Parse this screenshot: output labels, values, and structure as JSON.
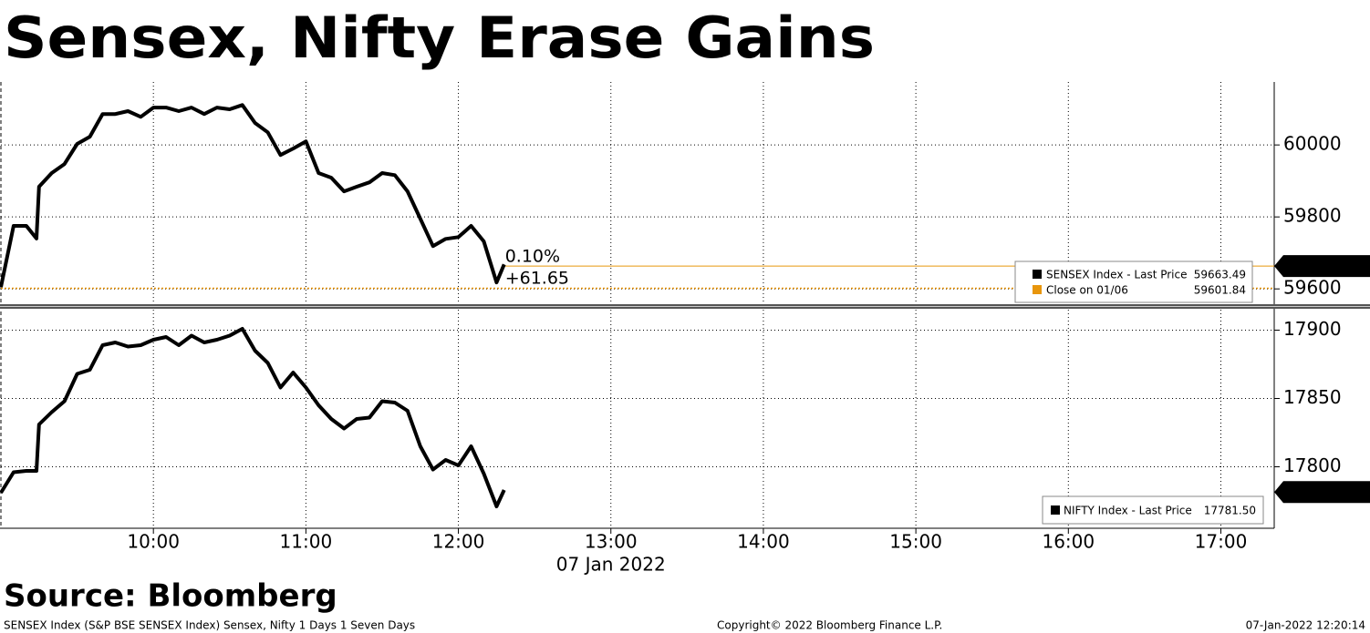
{
  "title": "Sensex, Nifty Erase Gains",
  "source": "Source: Bloomberg",
  "footer": {
    "left": "SENSEX Index (S&P BSE SENSEX Index) Sensex, Nifty 1 Days 1 Seven Days",
    "center": "Copyright© 2022 Bloomberg Finance L.P.",
    "right": "07-Jan-2022 12:20:14"
  },
  "chart_data": [
    {
      "type": "line",
      "x": [
        "09:00",
        "09:05",
        "09:10",
        "09:14",
        "09:15",
        "09:20",
        "09:25",
        "09:30",
        "09:35",
        "09:40",
        "09:45",
        "09:50",
        "09:55",
        "10:00",
        "10:05",
        "10:10",
        "10:15",
        "10:20",
        "10:25",
        "10:30",
        "10:35",
        "10:40",
        "10:45",
        "10:50",
        "10:55",
        "11:00",
        "11:05",
        "11:10",
        "11:15",
        "11:20",
        "11:25",
        "11:30",
        "11:35",
        "11:40",
        "11:45",
        "11:50",
        "11:55",
        "12:00",
        "12:05",
        "12:10",
        "12:15",
        "12:18"
      ],
      "series": [
        {
          "name": "SENSEX Index - Last Price",
          "color": "#000000",
          "last_price": 59663.49,
          "values": [
            59605,
            59775,
            59775,
            59740,
            59884,
            59922,
            59947,
            60003,
            60023,
            60086,
            60086,
            60094,
            60078,
            60104,
            60104,
            60094,
            60104,
            60086,
            60104,
            60099,
            60111,
            60061,
            60035,
            59972,
            59990,
            60010,
            59922,
            59909,
            59871,
            59884,
            59896,
            59922,
            59916,
            59871,
            59795,
            59719,
            59739,
            59744,
            59775,
            59732,
            59618,
            59668
          ]
        }
      ],
      "reference_line": {
        "name": "Close on 01/06",
        "value": 59601.84,
        "color": "#e8960c"
      },
      "annotations": [
        "0.10%",
        "+61.65"
      ],
      "ylim": [
        59560,
        60175
      ],
      "yticks": [
        59600,
        59800,
        60000
      ],
      "grid": true
    },
    {
      "type": "line",
      "x": [
        "09:00",
        "09:05",
        "09:10",
        "09:14",
        "09:15",
        "09:20",
        "09:25",
        "09:30",
        "09:35",
        "09:40",
        "09:45",
        "09:50",
        "09:55",
        "10:00",
        "10:05",
        "10:10",
        "10:15",
        "10:20",
        "10:25",
        "10:30",
        "10:35",
        "10:40",
        "10:45",
        "10:50",
        "10:55",
        "11:00",
        "11:05",
        "11:10",
        "11:15",
        "11:20",
        "11:25",
        "11:30",
        "11:35",
        "11:40",
        "11:45",
        "11:50",
        "11:55",
        "12:00",
        "12:05",
        "12:10",
        "12:15",
        "12:18"
      ],
      "series": [
        {
          "name": "NIFTY Index - Last Price",
          "color": "#000000",
          "last_price": 17781.5,
          "last_price_label": "17781.50",
          "values": [
            17781,
            17796,
            17797,
            17797,
            17831,
            17840,
            17848,
            17868,
            17871,
            17889,
            17891,
            17888,
            17889,
            17893,
            17895,
            17889,
            17896,
            17891,
            17893,
            17896,
            17901,
            17885,
            17876,
            17858,
            17869,
            17858,
            17845,
            17835,
            17828,
            17835,
            17836,
            17848,
            17847,
            17841,
            17815,
            17798,
            17805,
            17801,
            17815,
            17795,
            17771,
            17783
          ]
        }
      ],
      "xlim": [
        "09:00",
        "17:21"
      ],
      "xticks": [
        "10:00",
        "11:00",
        "12:00",
        "13:00",
        "14:00",
        "15:00",
        "16:00",
        "17:00"
      ],
      "xlabel": "07 Jan 2022",
      "ylim": [
        17755,
        17915
      ],
      "yticks": [
        17800,
        17850,
        17900
      ],
      "grid": true
    }
  ]
}
